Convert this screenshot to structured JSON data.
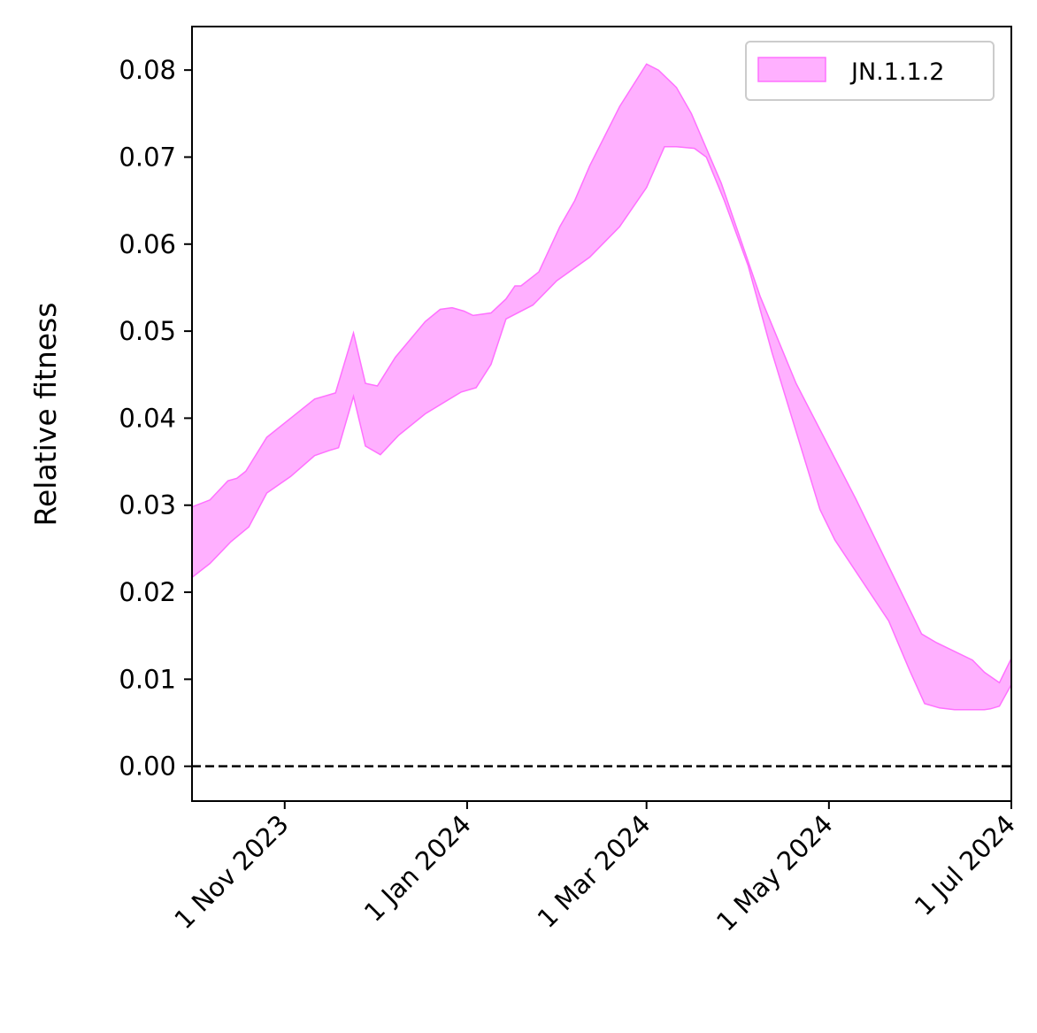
{
  "chart_data": {
    "type": "area",
    "title": "",
    "xlabel": "",
    "ylabel": "Relative fitness",
    "ylim": [
      -0.004,
      0.085
    ],
    "xlim": [
      "2023-10-01",
      "2024-07-01"
    ],
    "x_ticks": [
      {
        "date": "2023-11-01",
        "label": "1 Nov 2023"
      },
      {
        "date": "2024-01-01",
        "label": "1 Jan 2024"
      },
      {
        "date": "2024-03-01",
        "label": "1 Mar 2024"
      },
      {
        "date": "2024-05-01",
        "label": "1 May 2024"
      },
      {
        "date": "2024-07-01",
        "label": "1 Jul 2024"
      }
    ],
    "y_ticks": [
      {
        "value": 0.0,
        "label": "0.00"
      },
      {
        "value": 0.01,
        "label": "0.01"
      },
      {
        "value": 0.02,
        "label": "0.02"
      },
      {
        "value": 0.03,
        "label": "0.03"
      },
      {
        "value": 0.04,
        "label": "0.04"
      },
      {
        "value": 0.05,
        "label": "0.05"
      },
      {
        "value": 0.06,
        "label": "0.06"
      },
      {
        "value": 0.07,
        "label": "0.07"
      },
      {
        "value": 0.08,
        "label": "0.08"
      }
    ],
    "grid": false,
    "legend_position": "top-right",
    "reference_line": {
      "y": 0,
      "style": "dashed",
      "color": "#000000"
    },
    "series": [
      {
        "name": "JN.1.1.2",
        "fill_color": "#ffb0ff",
        "edge_color": "#ff70ff",
        "upper": [
          [
            "2023-10-01",
            0.0298
          ],
          [
            "2023-10-07",
            0.0306
          ],
          [
            "2023-10-13",
            0.0328
          ],
          [
            "2023-10-16",
            0.0331
          ],
          [
            "2023-10-19",
            0.0339
          ],
          [
            "2023-10-26",
            0.0378
          ],
          [
            "2023-11-03",
            0.04
          ],
          [
            "2023-11-11",
            0.0422
          ],
          [
            "2023-11-16",
            0.0427
          ],
          [
            "2023-11-18",
            0.0429
          ],
          [
            "2023-11-24",
            0.0498
          ],
          [
            "2023-11-28",
            0.044
          ],
          [
            "2023-12-02",
            0.0437
          ],
          [
            "2023-12-08",
            0.047
          ],
          [
            "2023-12-18",
            0.0511
          ],
          [
            "2023-12-23",
            0.0525
          ],
          [
            "2023-12-27",
            0.0527
          ],
          [
            "2023-12-31",
            0.0523
          ],
          [
            "2024-01-03",
            0.0518
          ],
          [
            "2024-01-09",
            0.0521
          ],
          [
            "2024-01-14",
            0.0537
          ],
          [
            "2024-01-17",
            0.0552
          ],
          [
            "2024-01-19",
            0.0552
          ],
          [
            "2024-01-25",
            0.0568
          ],
          [
            "2024-02-01",
            0.062
          ],
          [
            "2024-02-06",
            0.065
          ],
          [
            "2024-02-11",
            0.069
          ],
          [
            "2024-02-21",
            0.0758
          ],
          [
            "2024-03-01",
            0.0807
          ],
          [
            "2024-03-05",
            0.08
          ],
          [
            "2024-03-11",
            0.078
          ],
          [
            "2024-03-16",
            0.075
          ],
          [
            "2024-03-26",
            0.067
          ],
          [
            "2024-04-08",
            0.054
          ],
          [
            "2024-04-20",
            0.044
          ],
          [
            "2024-05-10",
            0.0307
          ],
          [
            "2024-06-01",
            0.0152
          ],
          [
            "2024-06-06",
            0.0142
          ],
          [
            "2024-06-18",
            0.0122
          ],
          [
            "2024-06-22",
            0.0108
          ],
          [
            "2024-06-27",
            0.0096
          ],
          [
            "2024-07-01",
            0.0124
          ]
        ],
        "lower": [
          [
            "2023-10-01",
            0.0217
          ],
          [
            "2023-10-07",
            0.0233
          ],
          [
            "2023-10-14",
            0.0258
          ],
          [
            "2023-10-20",
            0.0275
          ],
          [
            "2023-10-26",
            0.0314
          ],
          [
            "2023-11-03",
            0.0333
          ],
          [
            "2023-11-11",
            0.0357
          ],
          [
            "2023-11-16",
            0.0363
          ],
          [
            "2023-11-19",
            0.0366
          ],
          [
            "2023-11-24",
            0.0425
          ],
          [
            "2023-11-28",
            0.0368
          ],
          [
            "2023-12-03",
            0.0358
          ],
          [
            "2023-12-09",
            0.038
          ],
          [
            "2023-12-18",
            0.0405
          ],
          [
            "2023-12-30",
            0.043
          ],
          [
            "2024-01-04",
            0.0435
          ],
          [
            "2024-01-09",
            0.0462
          ],
          [
            "2024-01-14",
            0.0514
          ],
          [
            "2024-01-23",
            0.053
          ],
          [
            "2024-01-31",
            0.0558
          ],
          [
            "2024-02-11",
            0.0585
          ],
          [
            "2024-02-21",
            0.062
          ],
          [
            "2024-03-01",
            0.0665
          ],
          [
            "2024-03-07",
            0.0712
          ],
          [
            "2024-03-11",
            0.0712
          ],
          [
            "2024-03-17",
            0.071
          ],
          [
            "2024-03-21",
            0.07
          ],
          [
            "2024-03-27",
            0.065
          ],
          [
            "2024-04-04",
            0.0575
          ],
          [
            "2024-04-12",
            0.0475
          ],
          [
            "2024-04-28",
            0.0295
          ],
          [
            "2024-05-03",
            0.026
          ],
          [
            "2024-05-21",
            0.0167
          ],
          [
            "2024-05-28",
            0.011
          ],
          [
            "2024-06-02",
            0.0072
          ],
          [
            "2024-06-07",
            0.0067
          ],
          [
            "2024-06-12",
            0.0065
          ],
          [
            "2024-06-22",
            0.0065
          ],
          [
            "2024-06-24",
            0.0066
          ],
          [
            "2024-06-27",
            0.0069
          ],
          [
            "2024-07-01",
            0.0094
          ]
        ]
      }
    ]
  }
}
